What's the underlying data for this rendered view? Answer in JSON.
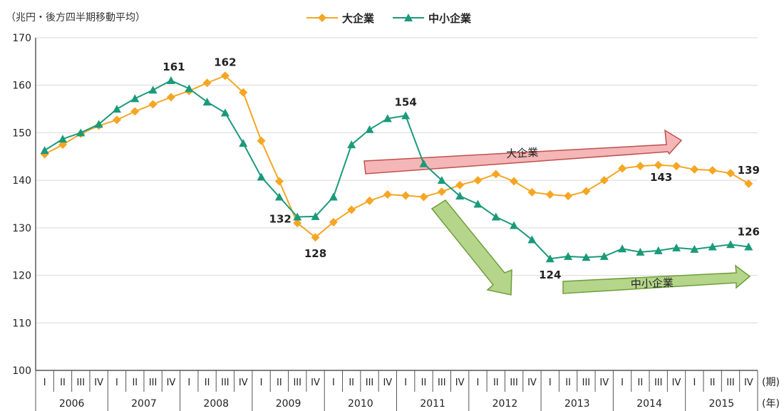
{
  "chart_data": {
    "type": "line",
    "unit_label": "（兆円・後方四半期移動平均）",
    "ylim": [
      100,
      170
    ],
    "yticks": [
      100,
      110,
      120,
      130,
      140,
      150,
      160,
      170
    ],
    "quarter_labels": [
      "I",
      "II",
      "III",
      "IV"
    ],
    "years": [
      "2006",
      "2007",
      "2008",
      "2009",
      "2010",
      "2011",
      "2012",
      "2013",
      "2014",
      "2015"
    ],
    "x_tick_suffix_quarter": "(期)",
    "x_tick_suffix_year": "(年)",
    "series": [
      {
        "name": "大企業",
        "color": "#F5A623",
        "marker": "diamond",
        "values": [
          145.5,
          147.5,
          149.8,
          151.5,
          152.7,
          154.5,
          156,
          157.5,
          158.8,
          160.5,
          162,
          158.5,
          148.3,
          139.8,
          131,
          128,
          131.2,
          133.8,
          135.7,
          137,
          136.8,
          136.5,
          137.6,
          139,
          140,
          141.3,
          139.8,
          137.5,
          137,
          136.7,
          137.7,
          140,
          142.5,
          143,
          143.2,
          143,
          142.3,
          142.1,
          141.5,
          139.3
        ]
      },
      {
        "name": "中小企業",
        "color": "#1A9A7A",
        "marker": "triangle",
        "values": [
          146.3,
          148.7,
          150,
          151.8,
          155,
          157.2,
          159,
          161,
          159.3,
          156.5,
          154.2,
          147.8,
          140.7,
          136.5,
          132.3,
          132.4,
          136.5,
          147.5,
          150.7,
          153,
          153.6,
          143.5,
          140,
          136.7,
          135,
          132.3,
          130.5,
          127.5,
          123.5,
          124,
          123.8,
          124,
          125.6,
          124.9,
          125.2,
          125.8,
          125.5,
          126,
          126.5,
          126
        ]
      }
    ],
    "data_labels": [
      {
        "series": 0,
        "index": 10,
        "text": "162"
      },
      {
        "series": 0,
        "index": 15,
        "text": "128"
      },
      {
        "series": 0,
        "index": 34,
        "text": "143"
      },
      {
        "series": 0,
        "index": 39,
        "text": "139"
      },
      {
        "series": 1,
        "index": 7,
        "text": "161"
      },
      {
        "series": 1,
        "index": 14,
        "text": "132"
      },
      {
        "series": 1,
        "index": 20,
        "text": "154"
      },
      {
        "series": 1,
        "index": 28,
        "text": "124"
      },
      {
        "series": 1,
        "index": 39,
        "text": "126"
      }
    ],
    "annotations": [
      {
        "text": "大企業",
        "color": "#F4B6B6",
        "stroke": "#C0504D",
        "direction": "right-flat"
      },
      {
        "text": "中小企業",
        "color": "#B4D58A",
        "stroke": "#6E9E3A",
        "direction": "down"
      },
      {
        "text": "中小企業",
        "color": "#B4D58A",
        "stroke": "#6E9E3A",
        "direction": "right-flat"
      }
    ]
  }
}
